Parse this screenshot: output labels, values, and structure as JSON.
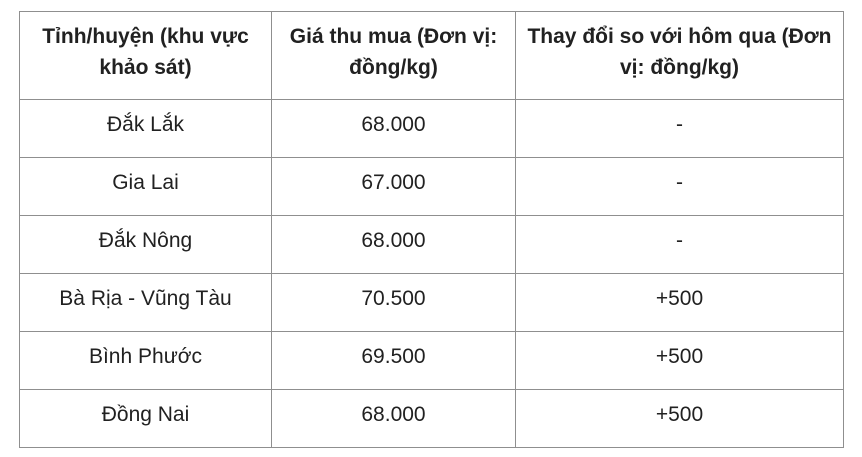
{
  "chart_data": {
    "type": "table",
    "columns": [
      {
        "lines": [
          "Tỉnh/huyện (khu vực",
          "khảo sát)"
        ]
      },
      {
        "lines": [
          "Giá thu mua (Đơn vị:",
          "đồng/kg)"
        ]
      },
      {
        "lines": [
          "Thay đổi so với hôm qua (Đơn",
          "vị: đồng/kg)"
        ]
      }
    ],
    "rows": [
      {
        "province": "Đắk Lắk",
        "price": "68.000",
        "change": "-"
      },
      {
        "province": "Gia Lai",
        "price": "67.000",
        "change": "-"
      },
      {
        "province": "Đắk Nông",
        "price": "68.000",
        "change": "-"
      },
      {
        "province": "Bà Rịa - Vũng Tàu",
        "price": "70.500",
        "change": "+500"
      },
      {
        "province": "Bình Phước",
        "price": "69.500",
        "change": "+500"
      },
      {
        "province": "Đồng Nai",
        "price": "68.000",
        "change": "+500"
      }
    ]
  },
  "colors": {
    "border": "#8f8f8f",
    "text": "#212121",
    "background": "#ffffff"
  }
}
